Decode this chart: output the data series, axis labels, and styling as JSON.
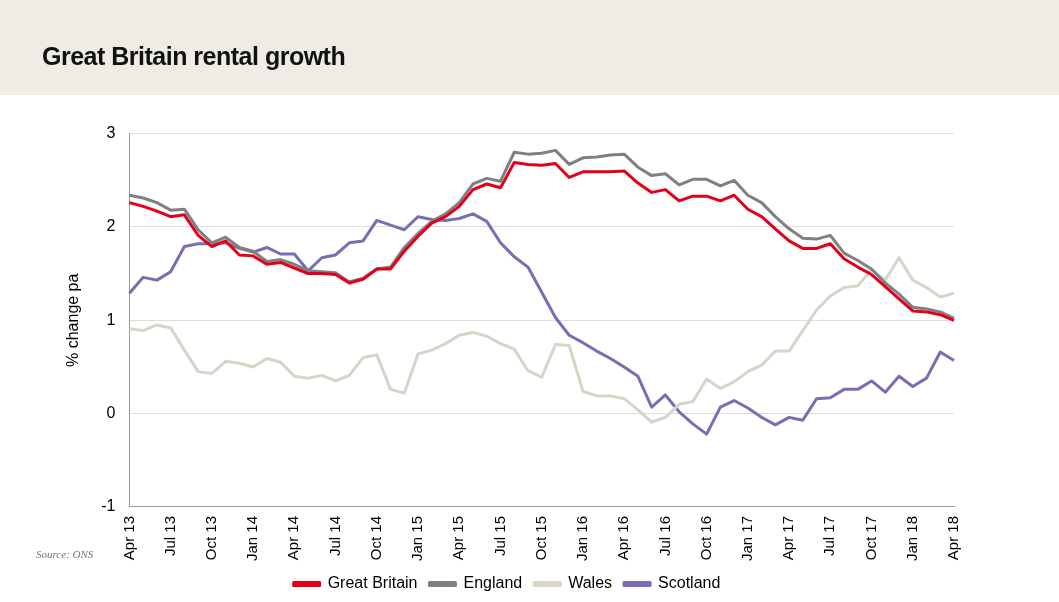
{
  "chart_data": {
    "type": "line",
    "title": "Great Britain rental growth",
    "ylabel": "% change pa",
    "categories": [
      "Apr 13",
      null,
      null,
      "Jul 13",
      null,
      null,
      "Oct 13",
      null,
      null,
      "Jan 14",
      null,
      null,
      "Apr 14",
      null,
      null,
      "Jul 14",
      null,
      null,
      "Oct 14",
      null,
      null,
      "Jan 15",
      null,
      null,
      "Apr 15",
      null,
      null,
      "Jul 15",
      null,
      null,
      "Oct 15",
      null,
      null,
      "Jan 16",
      null,
      null,
      "Apr 16",
      null,
      null,
      "Jul 16",
      null,
      null,
      "Oct 16",
      null,
      null,
      "Jan 17",
      null,
      null,
      "Apr 17",
      null,
      null,
      "Jul 17",
      null,
      null,
      "Oct 17",
      null,
      null,
      "Jan 18",
      null,
      null,
      "Apr 18"
    ],
    "series": [
      {
        "name": "Great Britain",
        "color": "#e2001a",
        "values": [
          2.26,
          2.22,
          2.17,
          2.11,
          2.13,
          1.91,
          1.79,
          1.85,
          1.7,
          1.69,
          1.6,
          1.62,
          1.56,
          1.5,
          1.5,
          1.49,
          1.4,
          1.44,
          1.55,
          1.55,
          1.74,
          1.9,
          2.04,
          2.11,
          2.22,
          2.4,
          2.46,
          2.42,
          2.69,
          2.67,
          2.66,
          2.68,
          2.53,
          2.59,
          2.59,
          2.59,
          2.6,
          2.47,
          2.37,
          2.4,
          2.28,
          2.33,
          2.33,
          2.28,
          2.34,
          2.19,
          2.11,
          1.98,
          1.85,
          1.77,
          1.77,
          1.82,
          1.66,
          1.57,
          1.49,
          1.36,
          1.23,
          1.1,
          1.09,
          1.06,
          1.0
        ]
      },
      {
        "name": "England",
        "color": "#808080",
        "values": [
          2.34,
          2.31,
          2.26,
          2.18,
          2.19,
          1.97,
          1.83,
          1.89,
          1.78,
          1.74,
          1.63,
          1.65,
          1.6,
          1.53,
          1.52,
          1.51,
          1.41,
          1.45,
          1.55,
          1.57,
          1.78,
          1.93,
          2.06,
          2.14,
          2.26,
          2.46,
          2.52,
          2.49,
          2.8,
          2.78,
          2.79,
          2.82,
          2.67,
          2.74,
          2.75,
          2.77,
          2.78,
          2.64,
          2.55,
          2.57,
          2.45,
          2.51,
          2.51,
          2.44,
          2.5,
          2.34,
          2.26,
          2.11,
          1.98,
          1.88,
          1.87,
          1.91,
          1.72,
          1.64,
          1.55,
          1.4,
          1.28,
          1.14,
          1.12,
          1.09,
          1.02
        ]
      },
      {
        "name": "Wales",
        "color": "#d9d4c7",
        "values": [
          0.91,
          0.89,
          0.95,
          0.92,
          0.68,
          0.45,
          0.43,
          0.56,
          0.54,
          0.5,
          0.59,
          0.55,
          0.4,
          0.38,
          0.41,
          0.35,
          0.41,
          0.6,
          0.63,
          0.26,
          0.22,
          0.64,
          0.68,
          0.75,
          0.84,
          0.87,
          0.83,
          0.75,
          0.69,
          0.46,
          0.39,
          0.74,
          0.73,
          0.24,
          0.19,
          0.19,
          0.16,
          0.04,
          -0.09,
          -0.04,
          0.1,
          0.13,
          0.37,
          0.27,
          0.34,
          0.45,
          0.52,
          0.67,
          0.67,
          0.89,
          1.11,
          1.26,
          1.35,
          1.37,
          1.54,
          1.43,
          1.67,
          1.43,
          1.35,
          1.25,
          1.29
        ]
      },
      {
        "name": "Scotland",
        "color": "#7570b3",
        "values": [
          1.29,
          1.46,
          1.43,
          1.52,
          1.79,
          1.82,
          1.82,
          1.83,
          1.77,
          1.73,
          1.78,
          1.71,
          1.71,
          1.53,
          1.67,
          1.7,
          1.83,
          1.85,
          2.07,
          2.02,
          1.97,
          2.11,
          2.08,
          2.07,
          2.09,
          2.14,
          2.06,
          1.83,
          1.68,
          1.57,
          1.3,
          1.03,
          0.84,
          0.76,
          0.67,
          0.59,
          0.5,
          0.4,
          0.07,
          0.2,
          0.02,
          -0.11,
          -0.22,
          0.07,
          0.14,
          0.06,
          -0.04,
          -0.12,
          -0.04,
          -0.07,
          0.16,
          0.17,
          0.26,
          0.26,
          0.35,
          0.23,
          0.4,
          0.29,
          0.38,
          0.66,
          0.57
        ]
      }
    ],
    "ylim": [
      -1,
      3
    ],
    "yticks": [
      -1,
      0,
      1,
      2,
      3
    ],
    "grid": "y",
    "legend": "bottom",
    "marker": "none",
    "line_style": "solid",
    "annotations": [
      "Source: ONS"
    ]
  }
}
